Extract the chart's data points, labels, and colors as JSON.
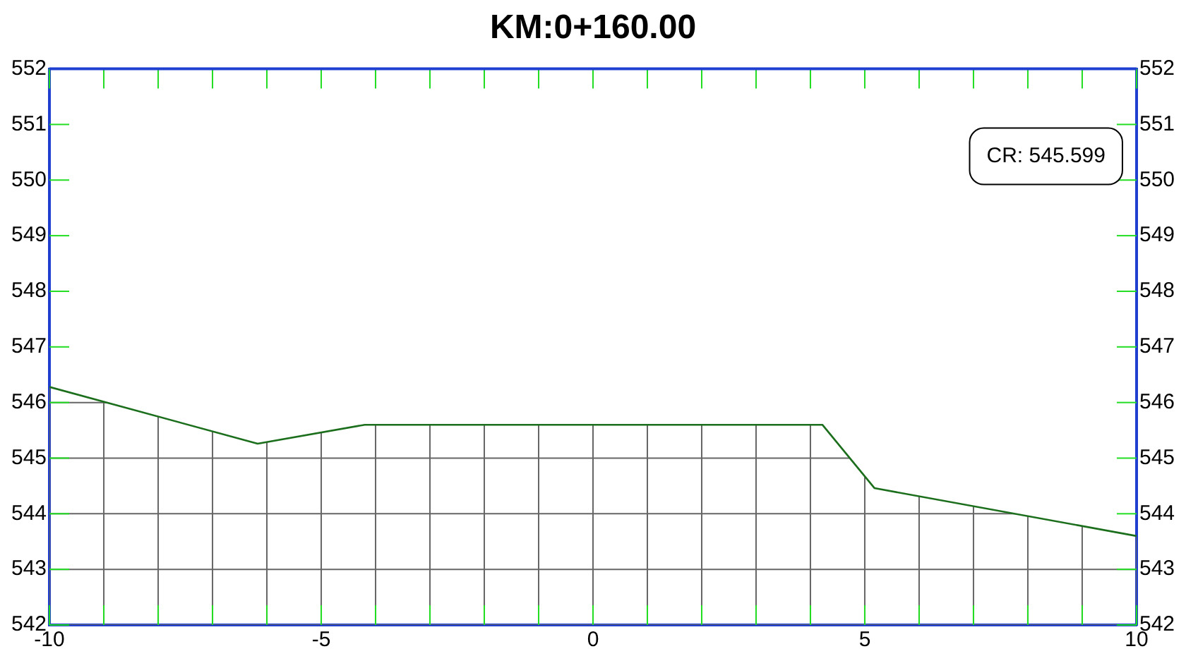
{
  "chart_data": {
    "type": "line",
    "title": "KM:0+160.00",
    "x": [
      -10,
      -6.17,
      -4.2,
      4.22,
      5.18,
      10
    ],
    "series": [
      {
        "color": "#1b6e1b",
        "values": [
          546.28,
          545.26,
          545.6,
          545.6,
          544.46,
          543.6
        ]
      }
    ],
    "xlim": [
      -10,
      10
    ],
    "xticks": [
      -10,
      {
        "value": -9,
        "label": null
      },
      {
        "value": -8,
        "label": null
      },
      {
        "value": -7,
        "label": null
      },
      {
        "value": -6,
        "label": null
      },
      -5,
      {
        "value": -4,
        "label": null
      },
      {
        "value": -3,
        "label": null
      },
      {
        "value": -2,
        "label": null
      },
      {
        "value": -1,
        "label": null
      },
      0,
      {
        "value": 1,
        "label": null
      },
      {
        "value": 2,
        "label": null
      },
      {
        "value": 3,
        "label": null
      },
      {
        "value": 4,
        "label": null
      },
      5,
      {
        "value": 6,
        "label": null
      },
      {
        "value": 7,
        "label": null
      },
      {
        "value": 8,
        "label": null
      },
      {
        "value": 9,
        "label": null
      },
      10
    ],
    "ylim": [
      542,
      552
    ],
    "yticks": [
      542,
      543,
      544,
      545,
      546,
      547,
      548,
      549,
      550,
      551,
      552
    ],
    "y2lim": [
      542,
      552
    ],
    "y2ticks": [
      542,
      543,
      544,
      545,
      546,
      547,
      548,
      549,
      550,
      551,
      552
    ],
    "annotations": [
      "CR: 545.599"
    ],
    "grid": true,
    "legend": false,
    "marker": "none",
    "line_style": "solid"
  }
}
